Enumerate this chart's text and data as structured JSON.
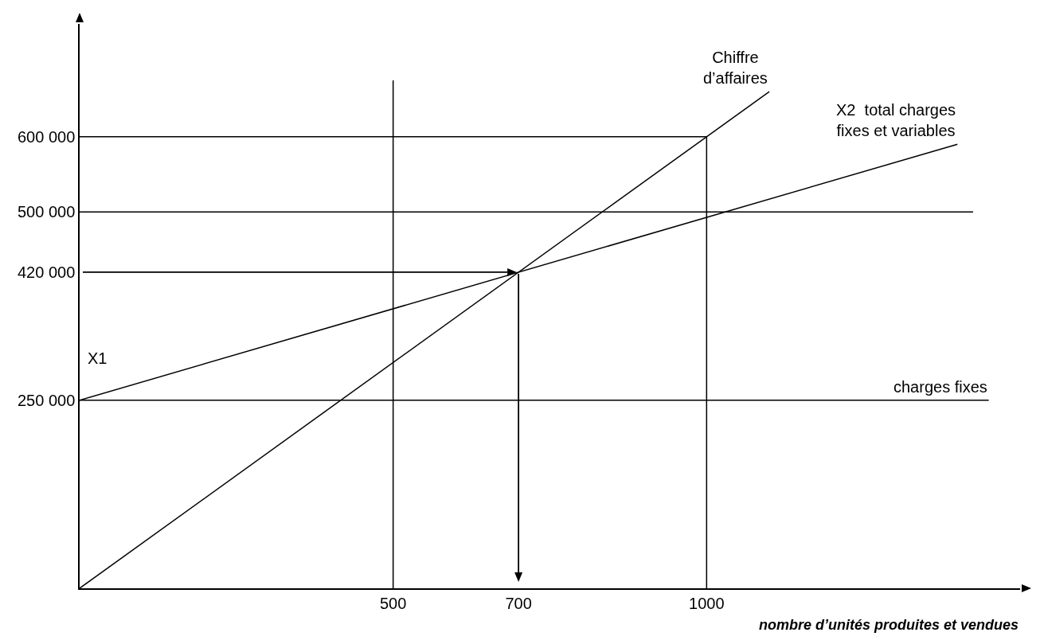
{
  "chart_data": {
    "type": "line",
    "xlabel": "nombre d’unités produites et vendues",
    "xlim": [
      0,
      1500
    ],
    "ylim": [
      0,
      750000
    ],
    "xticks": [
      500,
      700,
      1000
    ],
    "yticks": [
      {
        "value": 250000,
        "label": "250 000"
      },
      {
        "value": 420000,
        "label": "420 000"
      },
      {
        "value": 500000,
        "label": "500 000"
      },
      {
        "value": 600000,
        "label": "600 000"
      }
    ],
    "grid": false,
    "legend": false,
    "line_style": "solid",
    "series": [
      {
        "name": "Chiffre d’affaires",
        "color": "#000000",
        "x": [
          0,
          1100
        ],
        "values": [
          0,
          660000
        ]
      },
      {
        "name": "X2  total charges fixes et variables",
        "color": "#000000",
        "x": [
          0,
          1400
        ],
        "values": [
          250000,
          590000
        ]
      },
      {
        "name": "charges fixes",
        "color": "#000000",
        "x": [
          0,
          1450
        ],
        "values": [
          250000,
          250000
        ]
      },
      {
        "color": "#000000",
        "x": [
          0,
          1000,
          1000
        ],
        "values": [
          600000,
          600000,
          0
        ]
      }
    ],
    "ref_lines": [
      {
        "axis": "y",
        "value": 500000,
        "color": "#000000"
      },
      {
        "axis": "x",
        "value": 500,
        "color": "#000000"
      }
    ],
    "annotations": [
      {
        "text": "X1",
        "x": 0,
        "y": 250000
      }
    ]
  }
}
